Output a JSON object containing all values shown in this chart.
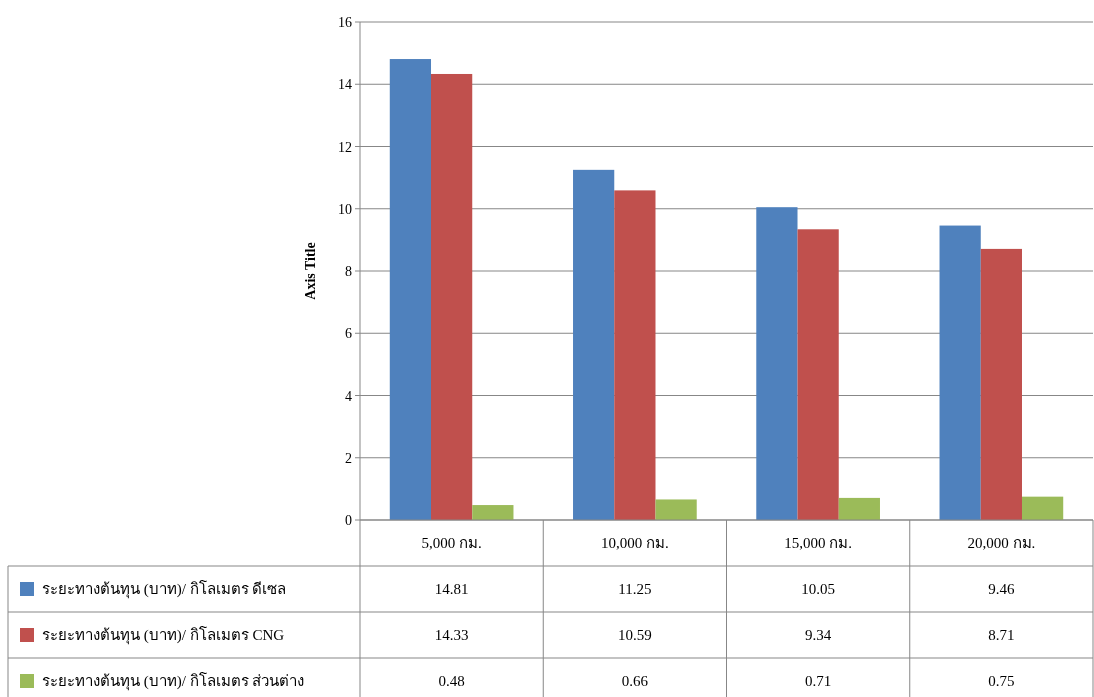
{
  "chart_data": {
    "type": "bar",
    "ylabel": "Axis Title",
    "categories": [
      "5,000 กม.",
      "10,000 กม.",
      "15,000 กม.",
      "20,000 กม."
    ],
    "series": [
      {
        "name": "ระยะทางต้นทุน (บาท)/ กิโลเมตร ดีเซล",
        "color": "#4f81bd",
        "values": [
          14.81,
          11.25,
          10.05,
          9.46
        ]
      },
      {
        "name": "ระยะทางต้นทุน (บาท)/ กิโลเมตร CNG",
        "color": "#c0504d",
        "values": [
          14.33,
          10.59,
          9.34,
          8.71
        ]
      },
      {
        "name": "ระยะทางต้นทุน (บาท)/ กิโลเมตร ส่วนต่าง",
        "color": "#9bbb59",
        "values": [
          0.48,
          0.66,
          0.71,
          0.75
        ]
      }
    ],
    "ylim": [
      0,
      16
    ],
    "yticks": [
      0,
      2,
      4,
      6,
      8,
      10,
      12,
      14,
      16
    ],
    "grid": "y",
    "data_labels": true,
    "legend": "bottom"
  }
}
